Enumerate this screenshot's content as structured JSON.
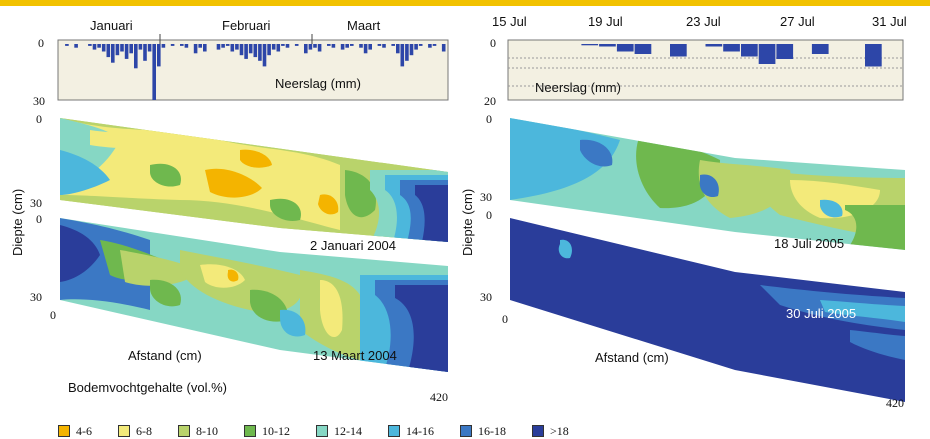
{
  "chart_data": [
    {
      "type": "bar",
      "panel": "winter-precipitation",
      "xticks": [
        "Januari",
        "Februari",
        "Maart"
      ],
      "ylabel": "Neerslag (mm)",
      "ylim": [
        0,
        30
      ],
      "ytick_labels": [
        "0",
        "30"
      ],
      "values": [
        0,
        1,
        0,
        2,
        0,
        0,
        1,
        3,
        2,
        4,
        7,
        10,
        6,
        4,
        8,
        5,
        13,
        3,
        9,
        4,
        30,
        12,
        2,
        0,
        1,
        0,
        1,
        2,
        0,
        5,
        2,
        4,
        0,
        0,
        3,
        2,
        1,
        4,
        3,
        6,
        8,
        5,
        7,
        9,
        12,
        6,
        3,
        4,
        1,
        2,
        0,
        1,
        0,
        5,
        3,
        2,
        4,
        0,
        1,
        2,
        0,
        3,
        2,
        1,
        0,
        2,
        5,
        3,
        0,
        1,
        2,
        0,
        1,
        5,
        12,
        9,
        6,
        3,
        1,
        0,
        2,
        1,
        0,
        4
      ]
    },
    {
      "type": "bar",
      "panel": "summer-precipitation",
      "xticks": [
        "15 Jul",
        "19 Jul",
        "23 Jul",
        "27 Jul",
        "31 Jul"
      ],
      "ylabel": "Neerslag (mm)",
      "ylim": [
        0,
        20
      ],
      "ytick_labels": [
        "0",
        "20"
      ],
      "values": [
        0,
        0,
        0,
        0,
        0.5,
        1,
        3,
        4,
        0,
        5,
        0,
        1,
        3,
        5,
        8,
        6,
        0,
        4,
        0,
        0,
        9,
        0
      ]
    },
    {
      "type": "heatmap",
      "panel": "soil-moisture-2-januari-2004",
      "label": "2 Januari 2004",
      "ylabel": "Diepte (cm)",
      "y_ticks": [
        "0",
        "30"
      ]
    },
    {
      "type": "heatmap",
      "panel": "soil-moisture-13-maart-2004",
      "label": "13 Maart 2004",
      "xlabel": "Afstand (cm)",
      "x_ticks": [
        "0",
        "420"
      ],
      "y_ticks": [
        "0",
        "30"
      ]
    },
    {
      "type": "heatmap",
      "panel": "soil-moisture-18-juli-2005",
      "label": "18 Juli 2005",
      "ylabel": "Diepte (cm)",
      "y_ticks": [
        "0",
        "30"
      ]
    },
    {
      "type": "heatmap",
      "panel": "soil-moisture-30-juli-2005",
      "label": "30 Juli 2005",
      "xlabel": "Afstand (cm)",
      "x_ticks": [
        "0",
        "420"
      ],
      "y_ticks": [
        "0",
        "30"
      ]
    }
  ],
  "legend_title": "Bodemvochtgehalte (vol.%)",
  "legend": [
    {
      "label": "4-6",
      "color": "#f4b400"
    },
    {
      "label": "6-8",
      "color": "#f3ea7a"
    },
    {
      "label": "8-10",
      "color": "#b9d36b"
    },
    {
      "label": "10-12",
      "color": "#6fb84e"
    },
    {
      "label": "12-14",
      "color": "#86d7c4"
    },
    {
      "label": "14-16",
      "color": "#4cb7dc"
    },
    {
      "label": "16-18",
      "color": "#3b78c4"
    },
    {
      "label": ">18",
      "color": "#2a3d9a"
    }
  ],
  "bar_color": "#2d46a8",
  "accent_color": "#f2c200"
}
